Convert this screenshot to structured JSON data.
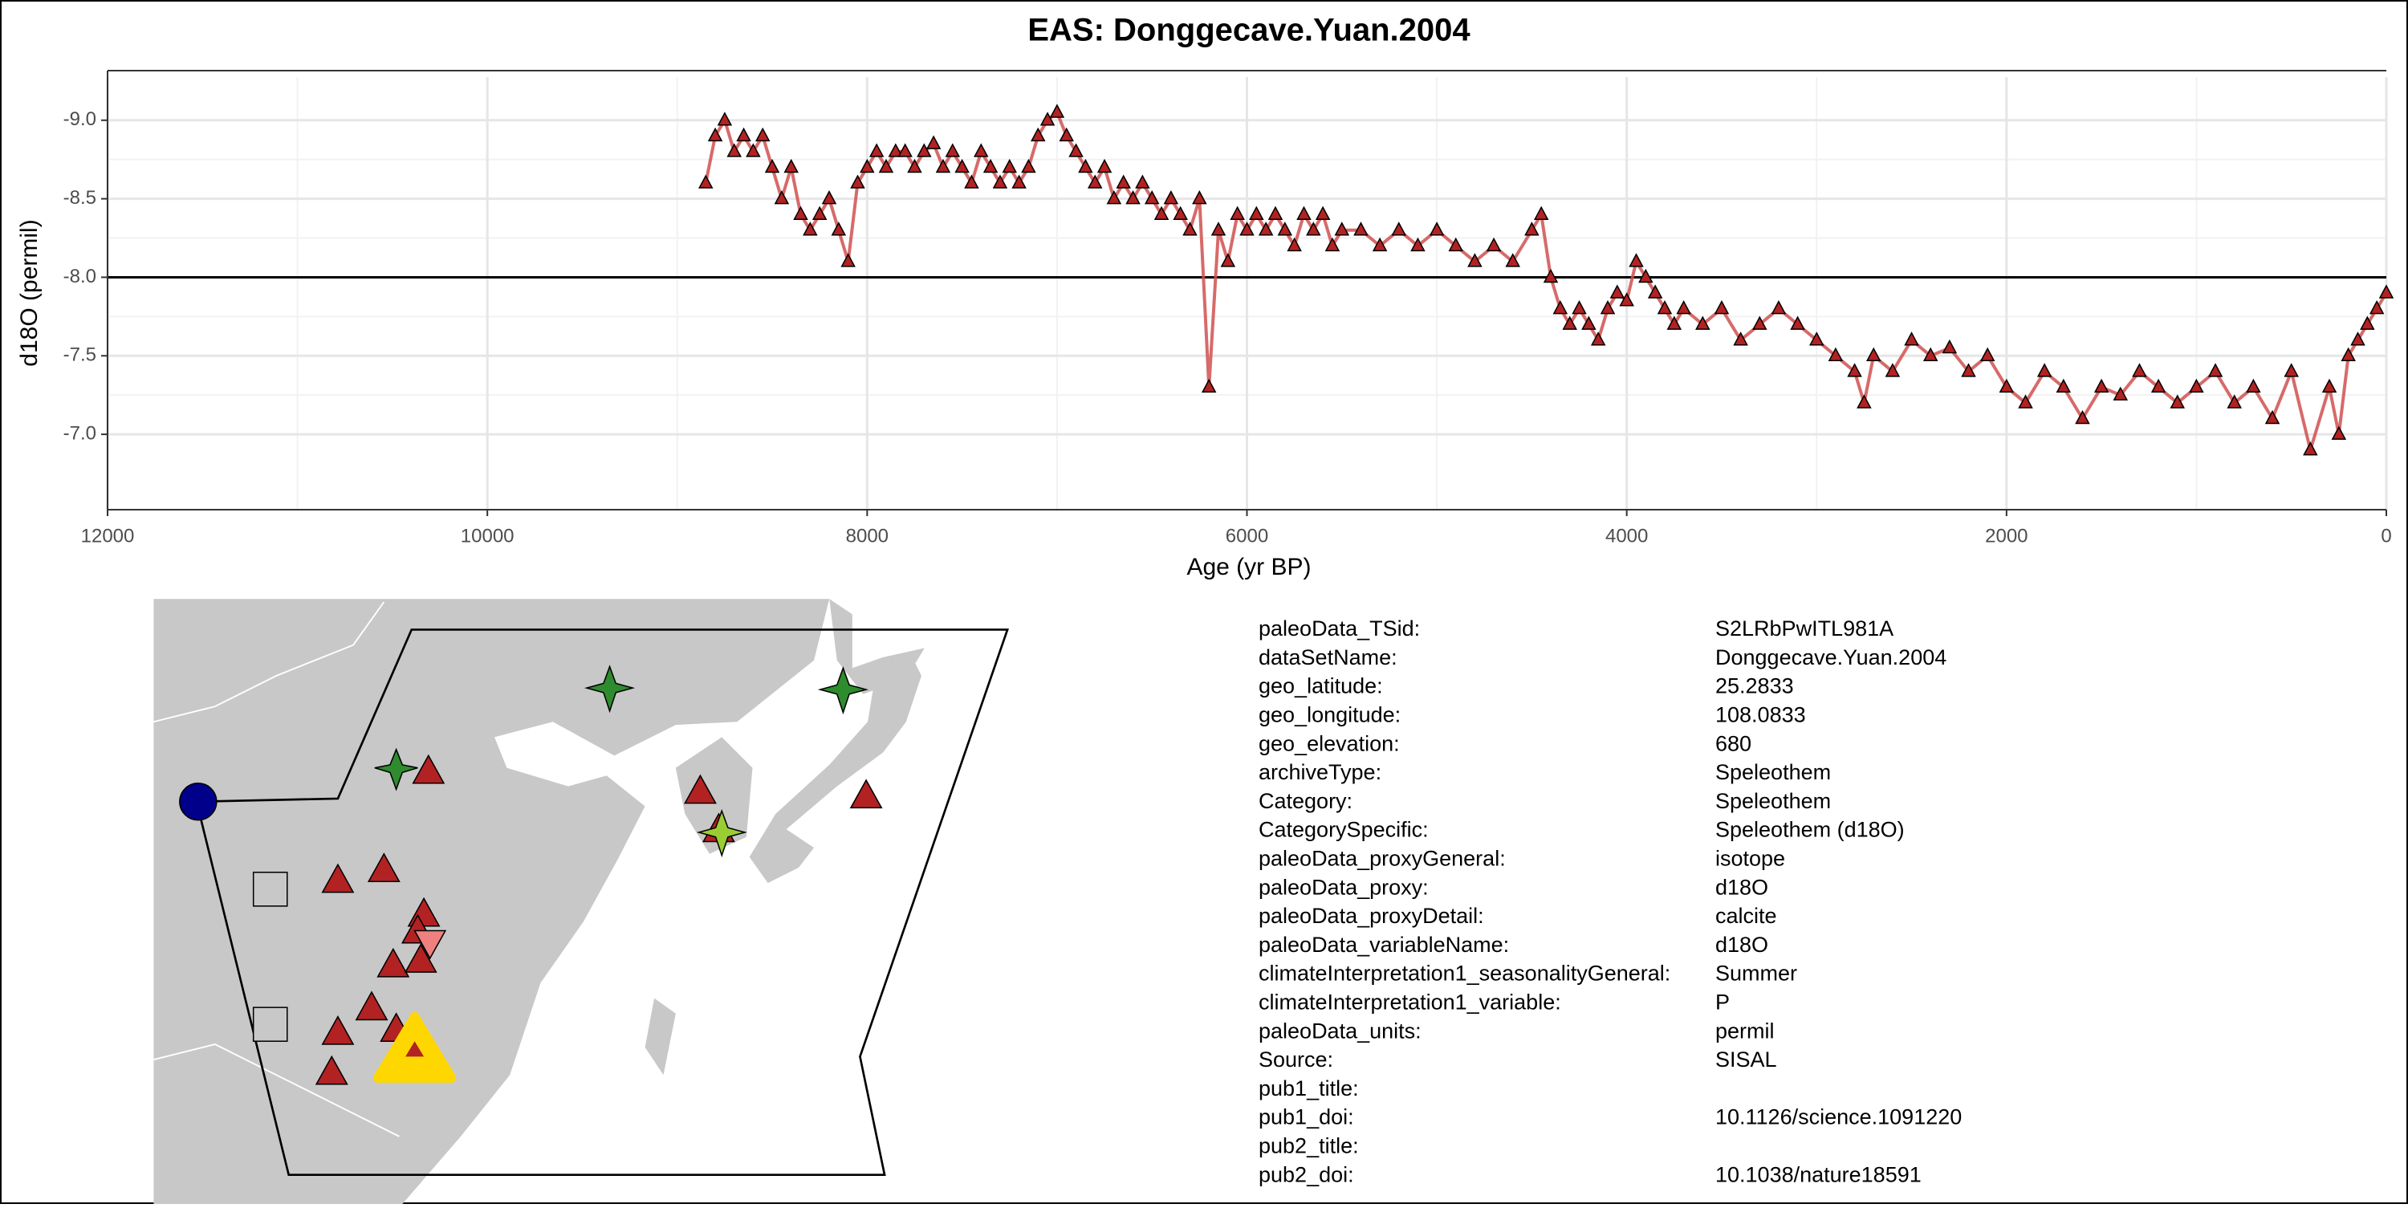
{
  "chart_data": {
    "type": "line",
    "title": "EAS: Donggecave.Yuan.2004",
    "x_label": "Age (yr BP)",
    "y_label": "d18O (permil)",
    "x": [
      8850,
      8800,
      8750,
      8700,
      8650,
      8600,
      8550,
      8500,
      8450,
      8400,
      8350,
      8300,
      8250,
      8200,
      8150,
      8100,
      8050,
      8000,
      7950,
      7900,
      7850,
      7800,
      7750,
      7700,
      7650,
      7600,
      7550,
      7500,
      7450,
      7400,
      7350,
      7300,
      7250,
      7200,
      7150,
      7100,
      7050,
      7000,
      6950,
      6900,
      6850,
      6800,
      6750,
      6700,
      6650,
      6600,
      6550,
      6500,
      6450,
      6400,
      6350,
      6300,
      6250,
      6200,
      6150,
      6100,
      6050,
      6000,
      5950,
      5900,
      5850,
      5800,
      5750,
      5700,
      5650,
      5600,
      5550,
      5500,
      5400,
      5300,
      5200,
      5100,
      5000,
      4900,
      4800,
      4700,
      4600,
      4500,
      4450,
      4400,
      4350,
      4300,
      4250,
      4200,
      4150,
      4100,
      4050,
      4000,
      3950,
      3900,
      3850,
      3800,
      3750,
      3700,
      3600,
      3500,
      3400,
      3300,
      3200,
      3100,
      3000,
      2900,
      2800,
      2750,
      2700,
      2600,
      2500,
      2400,
      2300,
      2200,
      2100,
      2000,
      1900,
      1800,
      1700,
      1600,
      1500,
      1400,
      1300,
      1200,
      1100,
      1000,
      900,
      800,
      700,
      600,
      500,
      400,
      300,
      250,
      200,
      150,
      100,
      50,
      0
    ],
    "series": [
      {
        "color": "#b22222",
        "line_color": "#d05050",
        "values": [
          -8.6,
          -8.9,
          -9.0,
          -8.8,
          -8.9,
          -8.8,
          -8.9,
          -8.7,
          -8.5,
          -8.7,
          -8.4,
          -8.3,
          -8.4,
          -8.5,
          -8.3,
          -8.1,
          -8.6,
          -8.7,
          -8.8,
          -8.7,
          -8.8,
          -8.8,
          -8.7,
          -8.8,
          -8.85,
          -8.7,
          -8.8,
          -8.7,
          -8.6,
          -8.8,
          -8.7,
          -8.6,
          -8.7,
          -8.6,
          -8.7,
          -8.9,
          -9.0,
          -9.05,
          -8.9,
          -8.8,
          -8.7,
          -8.6,
          -8.7,
          -8.5,
          -8.6,
          -8.5,
          -8.6,
          -8.5,
          -8.4,
          -8.5,
          -8.4,
          -8.3,
          -8.5,
          -7.3,
          -8.3,
          -8.1,
          -8.4,
          -8.3,
          -8.4,
          -8.3,
          -8.4,
          -8.3,
          -8.2,
          -8.4,
          -8.3,
          -8.4,
          -8.2,
          -8.3,
          -8.3,
          -8.2,
          -8.3,
          -8.2,
          -8.3,
          -8.2,
          -8.1,
          -8.2,
          -8.1,
          -8.3,
          -8.4,
          -8.0,
          -7.8,
          -7.7,
          -7.8,
          -7.7,
          -7.6,
          -7.8,
          -7.9,
          -7.85,
          -8.1,
          -8.0,
          -7.9,
          -7.8,
          -7.7,
          -7.8,
          -7.7,
          -7.8,
          -7.6,
          -7.7,
          -7.8,
          -7.7,
          -7.6,
          -7.5,
          -7.4,
          -7.2,
          -7.5,
          -7.4,
          -7.6,
          -7.5,
          -7.55,
          -7.4,
          -7.5,
          -7.3,
          -7.2,
          -7.4,
          -7.3,
          -7.1,
          -7.3,
          -7.25,
          -7.4,
          -7.3,
          -7.2,
          -7.3,
          -7.4,
          -7.2,
          -7.3,
          -7.1,
          -7.4,
          -6.9,
          -7.3,
          -7.0,
          -7.5,
          -7.6,
          -7.7,
          -7.8,
          -7.9
        ]
      }
    ],
    "xlim": [
      12000,
      0
    ],
    "xticks": [
      12000,
      10000,
      8000,
      6000,
      4000,
      2000,
      0
    ],
    "ylim": [
      -6.52,
      -9.275
    ],
    "yticks": [
      {
        "value": -9,
        "label": "-9.0"
      },
      {
        "value": -8.5,
        "label": "-8.5"
      },
      {
        "value": -8,
        "label": "-8.0"
      },
      {
        "value": -7.5,
        "label": "-7.5"
      },
      {
        "value": -7,
        "label": "-7.0"
      }
    ],
    "reference_line": -8,
    "grid": true
  },
  "metadata": {
    "rows": [
      [
        "paleoData_TSid:",
        "S2LRbPwITL981A"
      ],
      [
        "dataSetName:",
        "Donggecave.Yuan.2004"
      ],
      [
        "geo_latitude:",
        "25.2833"
      ],
      [
        "geo_longitude:",
        "108.0833"
      ],
      [
        "geo_elevation:",
        "680"
      ],
      [
        "archiveType:",
        "Speleothem"
      ],
      [
        "Category:",
        "Speleothem"
      ],
      [
        "CategorySpecific:",
        "Speleothem (d18O)"
      ],
      [
        "paleoData_proxyGeneral:",
        "isotope"
      ],
      [
        "paleoData_proxy:",
        "d18O"
      ],
      [
        "paleoData_proxyDetail:",
        "calcite"
      ],
      [
        "paleoData_variableName:",
        "d18O"
      ],
      [
        "climateInterpretation1_seasonalityGeneral:",
        "Summer"
      ],
      [
        "climateInterpretation1_variable:",
        "P"
      ],
      [
        "paleoData_units:",
        "permil"
      ],
      [
        "Source:",
        "SISAL"
      ],
      [
        "pub1_title:"
      ],
      [
        "pub1_doi:",
        "10.1126/science.1091220"
      ],
      [
        "pub2_title:"
      ],
      [
        "pub2_doi:",
        "10.1038/nature18591"
      ]
    ]
  }
}
